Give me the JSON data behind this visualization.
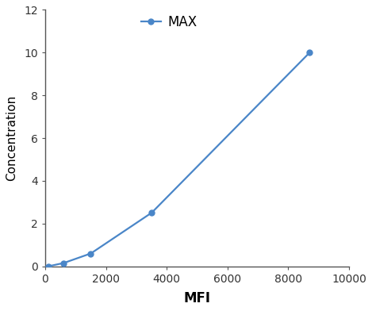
{
  "x": [
    100,
    600,
    1500,
    3500,
    8700
  ],
  "y": [
    0.0,
    0.15,
    0.6,
    2.5,
    10.0
  ],
  "line_color": "#4A86C8",
  "marker_color": "#4A86C8",
  "marker_style": "o",
  "marker_size": 5,
  "line_width": 1.6,
  "xlabel": "MFI",
  "ylabel": "Concentration",
  "xlim": [
    0,
    10000
  ],
  "ylim": [
    0,
    12
  ],
  "xticks": [
    0,
    2000,
    4000,
    6000,
    8000,
    10000
  ],
  "yticks": [
    0,
    2,
    4,
    6,
    8,
    10,
    12
  ],
  "legend_label": "MAX",
  "xlabel_fontsize": 12,
  "ylabel_fontsize": 11,
  "tick_fontsize": 10,
  "legend_fontsize": 12,
  "background_color": "#ffffff",
  "spine_color": "#555555"
}
